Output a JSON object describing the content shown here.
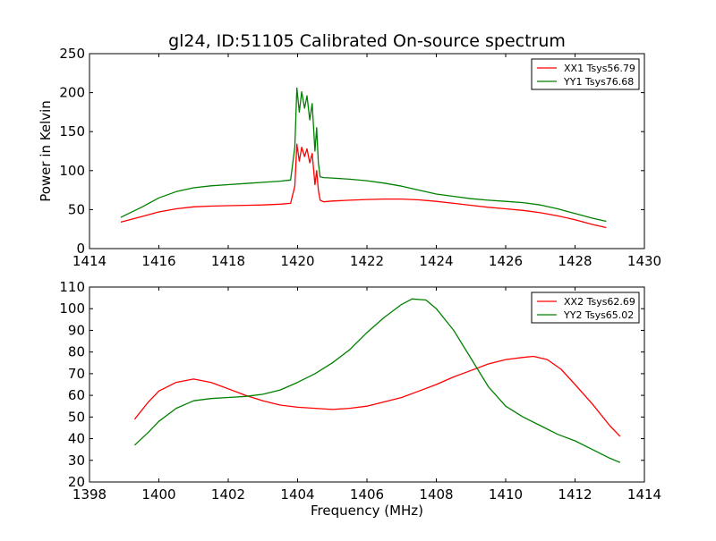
{
  "chart_data": [
    {
      "type": "line",
      "title": "gl24, ID:51105 Calibrated On-source spectrum",
      "xlabel": "",
      "ylabel": "Power in Kelvin",
      "xlim": [
        1414,
        1430
      ],
      "ylim": [
        0,
        250
      ],
      "xticks": [
        1414,
        1416,
        1418,
        1420,
        1422,
        1424,
        1426,
        1428,
        1430
      ],
      "yticks": [
        0,
        50,
        100,
        150,
        200,
        250
      ],
      "legend_position": "top-right",
      "grid": false,
      "series": [
        {
          "name": "XX1 Tsys56.79",
          "color": "#ff0000",
          "x": [
            1414.9,
            1415.5,
            1416.0,
            1416.5,
            1417.0,
            1417.5,
            1418.0,
            1418.5,
            1419.0,
            1419.5,
            1419.8,
            1419.92,
            1419.98,
            1420.05,
            1420.12,
            1420.2,
            1420.27,
            1420.35,
            1420.42,
            1420.5,
            1420.55,
            1420.6,
            1420.65,
            1420.75,
            1421.0,
            1421.5,
            1422.0,
            1422.5,
            1423.0,
            1423.5,
            1424.0,
            1424.5,
            1425.0,
            1425.5,
            1426.0,
            1426.5,
            1427.0,
            1427.5,
            1428.0,
            1428.5,
            1428.9
          ],
          "y": [
            34,
            41,
            47,
            51,
            53.5,
            54.5,
            55,
            55.5,
            56,
            57,
            58,
            80,
            134,
            112,
            130,
            118,
            128,
            110,
            122,
            82,
            100,
            75,
            62,
            60,
            61,
            62,
            63,
            63.5,
            63.5,
            62.5,
            60.5,
            58,
            55.5,
            53,
            51,
            49,
            46,
            42,
            37,
            31,
            27
          ]
        },
        {
          "name": "YY1 Tsys76.68",
          "color": "#008000",
          "x": [
            1414.9,
            1415.5,
            1416.0,
            1416.5,
            1417.0,
            1417.5,
            1418.0,
            1418.5,
            1419.0,
            1419.5,
            1419.8,
            1419.92,
            1419.98,
            1420.05,
            1420.12,
            1420.2,
            1420.27,
            1420.35,
            1420.42,
            1420.5,
            1420.55,
            1420.6,
            1420.65,
            1420.75,
            1421.0,
            1421.5,
            1422.0,
            1422.5,
            1423.0,
            1423.5,
            1424.0,
            1424.5,
            1425.0,
            1425.5,
            1426.0,
            1426.5,
            1427.0,
            1427.5,
            1428.0,
            1428.5,
            1428.9
          ],
          "y": [
            40,
            53,
            65,
            73,
            78,
            80.5,
            82,
            83.5,
            85,
            86.5,
            88,
            130,
            206,
            175,
            201,
            180,
            196,
            165,
            186,
            125,
            155,
            110,
            92,
            91,
            90.5,
            89,
            87,
            84,
            80,
            75,
            70,
            67,
            64,
            62,
            60.5,
            59,
            56,
            51,
            45,
            39,
            35
          ]
        }
      ]
    },
    {
      "type": "line",
      "title": "",
      "xlabel": "Frequency (MHz)",
      "ylabel": "",
      "xlim": [
        1398,
        1414
      ],
      "ylim": [
        20,
        110
      ],
      "xticks": [
        1398,
        1400,
        1402,
        1404,
        1406,
        1408,
        1410,
        1412,
        1414
      ],
      "yticks": [
        20,
        30,
        40,
        50,
        60,
        70,
        80,
        90,
        100,
        110
      ],
      "legend_position": "top-right",
      "grid": false,
      "series": [
        {
          "name": "XX2 Tsys62.69",
          "color": "#ff0000",
          "x": [
            1399.3,
            1399.7,
            1400.0,
            1400.5,
            1401.0,
            1401.5,
            1402.0,
            1402.5,
            1403.0,
            1403.5,
            1404.0,
            1404.5,
            1405.0,
            1405.5,
            1406.0,
            1406.5,
            1407.0,
            1407.5,
            1408.0,
            1408.5,
            1409.0,
            1409.5,
            1410.0,
            1410.5,
            1410.8,
            1411.2,
            1411.6,
            1412.0,
            1412.5,
            1413.0,
            1413.3
          ],
          "y": [
            49,
            57,
            62,
            66,
            67.5,
            66,
            63,
            60,
            57.5,
            55.5,
            54.5,
            54,
            53.5,
            54,
            55,
            57,
            59,
            62,
            65,
            68.5,
            71.5,
            74.5,
            76.5,
            77.5,
            78,
            76.5,
            72,
            65,
            56,
            46,
            41
          ]
        },
        {
          "name": "YY2 Tsys65.02",
          "color": "#008000",
          "x": [
            1399.3,
            1399.7,
            1400.0,
            1400.5,
            1401.0,
            1401.5,
            1402.0,
            1402.5,
            1403.0,
            1403.5,
            1404.0,
            1404.5,
            1405.0,
            1405.5,
            1406.0,
            1406.5,
            1407.0,
            1407.3,
            1407.7,
            1408.0,
            1408.5,
            1409.0,
            1409.5,
            1410.0,
            1410.5,
            1411.0,
            1411.5,
            1412.0,
            1412.5,
            1413.0,
            1413.3
          ],
          "y": [
            37,
            43,
            48,
            54,
            57.5,
            58.5,
            59,
            59.5,
            60.5,
            62.5,
            66,
            70,
            75,
            81,
            89,
            96,
            102,
            104.5,
            104,
            100,
            90,
            77,
            64,
            55,
            50,
            46,
            42,
            39,
            35,
            31,
            29
          ]
        }
      ]
    }
  ]
}
